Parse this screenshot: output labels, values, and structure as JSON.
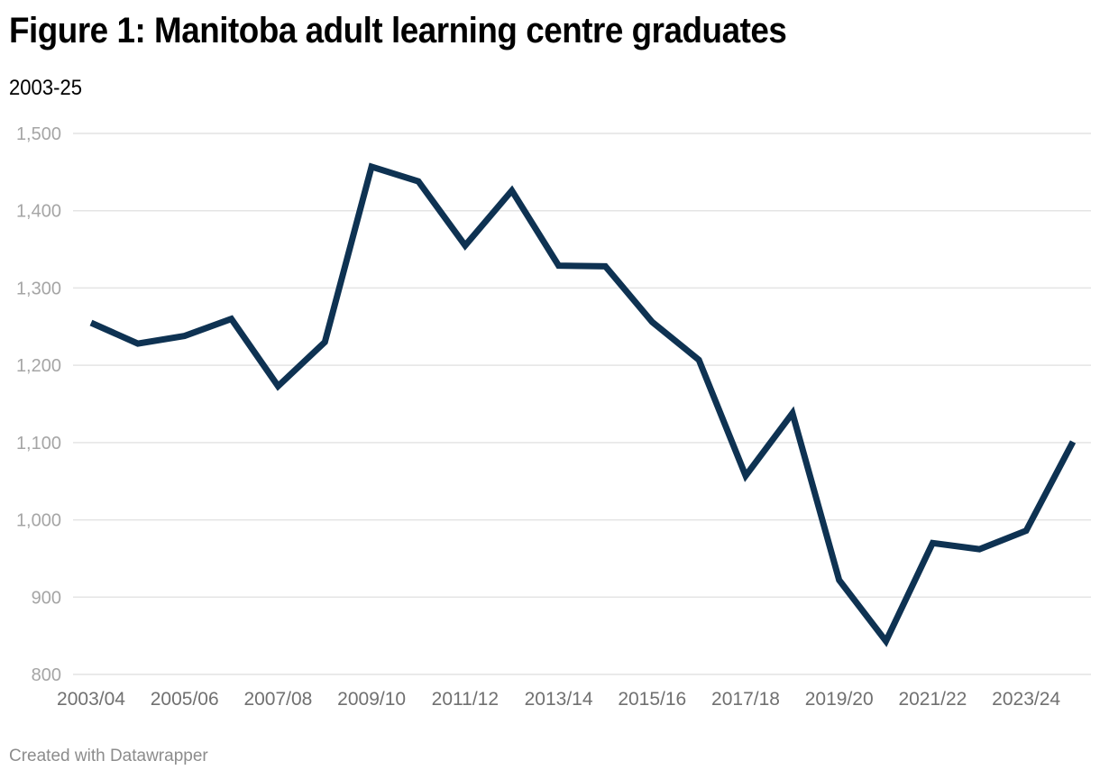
{
  "header": {
    "title": "Figure 1: Manitoba adult learning centre graduates",
    "subtitle": "2003-25"
  },
  "footer": {
    "credit": "Created with Datawrapper"
  },
  "colors": {
    "line": "#0e3252",
    "grid": "#e4e4e4",
    "ytick": "#a5a5a5",
    "xtick": "#707070"
  },
  "chart_data": {
    "type": "line",
    "title": "Figure 1: Manitoba adult learning centre graduates",
    "subtitle": "2003-25",
    "xlabel": "",
    "ylabel": "",
    "ylim": [
      800,
      1500
    ],
    "yticks": [
      800,
      900,
      1000,
      1100,
      1200,
      1300,
      1400,
      1500
    ],
    "ytick_labels": [
      "800",
      "900",
      "1,000",
      "1,100",
      "1,200",
      "1,300",
      "1,400",
      "1,500"
    ],
    "xtick_labels": [
      "2003/04",
      "2005/06",
      "2007/08",
      "2009/10",
      "2011/12",
      "2013/14",
      "2015/16",
      "2017/18",
      "2019/20",
      "2021/22",
      "2023/24"
    ],
    "grid": true,
    "legend": "none",
    "x": [
      "2003/04",
      "2004/05",
      "2005/06",
      "2006/07",
      "2007/08",
      "2008/09",
      "2009/10",
      "2010/11",
      "2011/12",
      "2012/13",
      "2013/14",
      "2014/15",
      "2015/16",
      "2016/17",
      "2017/18",
      "2018/19",
      "2019/20",
      "2020/21",
      "2021/22",
      "2022/23",
      "2023/24",
      "2024/25"
    ],
    "series": [
      {
        "name": "Graduates",
        "values": [
          1255,
          1228,
          1238,
          1260,
          1173,
          1230,
          1457,
          1438,
          1355,
          1426,
          1329,
          1328,
          1256,
          1207,
          1057,
          1138,
          922,
          843,
          970,
          962,
          986,
          1101
        ]
      }
    ]
  }
}
